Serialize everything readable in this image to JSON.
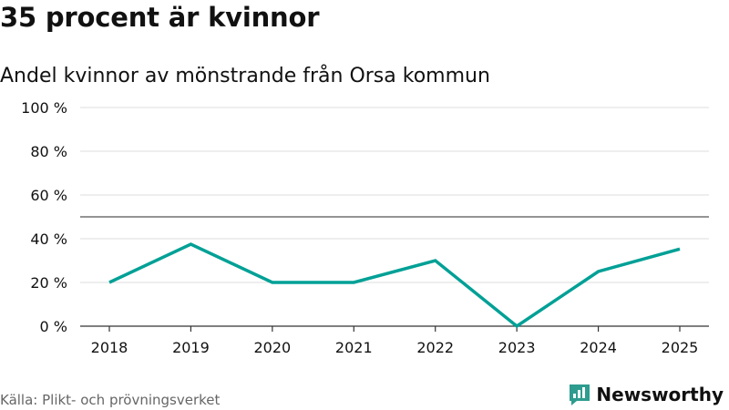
{
  "header": {
    "title": "35 procent är kvinnor",
    "subtitle": "Andel kvinnor av mönstrande från Orsa kommun"
  },
  "footer": {
    "source": "Källa: Plikt- och prövningsverket",
    "brand": "Newsworthy"
  },
  "colors": {
    "line": "#00a096",
    "brand": "#2e9c8f",
    "grid": "#dddddd",
    "reference": "#555555",
    "axis": "#333333",
    "text": "#111111"
  },
  "chart_data": {
    "type": "line",
    "title": "35 procent är kvinnor",
    "subtitle": "Andel kvinnor av mönstrande från Orsa kommun",
    "xlabel": "",
    "ylabel": "",
    "categories": [
      "2018",
      "2019",
      "2020",
      "2021",
      "2022",
      "2023",
      "2024",
      "2025"
    ],
    "series": [
      {
        "name": "Andel kvinnor",
        "values": [
          20,
          37.5,
          20,
          20,
          30,
          0,
          25,
          35.3
        ]
      }
    ],
    "ylim": [
      0,
      100
    ],
    "yticks": [
      0,
      20,
      40,
      60,
      80,
      100
    ],
    "ytick_labels": [
      "0 %",
      "20 %",
      "40 %",
      "60 %",
      "80 %",
      "100 %"
    ],
    "reference_line": 50,
    "grid": true
  }
}
